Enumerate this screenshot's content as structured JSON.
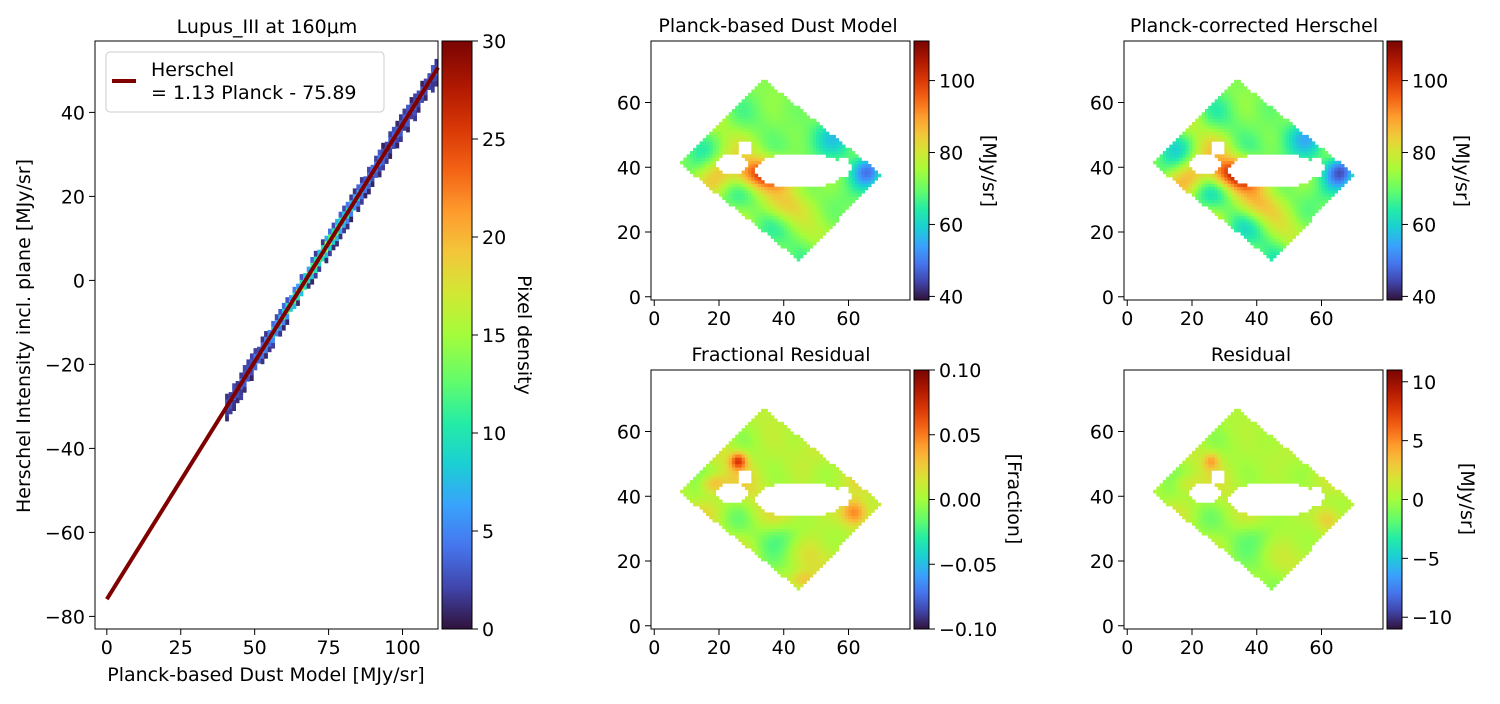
{
  "chart_data": [
    {
      "type": "heatmap",
      "subtype": "2d-density-scatter-with-fit",
      "title": "Lupus_III at 160μm",
      "xlabel": "Planck-based Dust Model [MJy/sr]",
      "ylabel": "Herschel Intensity incl. plane [MJy/sr]",
      "xlim": [
        -4,
        112
      ],
      "ylim": [
        -83,
        57
      ],
      "xticks": [
        "0",
        "25",
        "50",
        "75",
        "100"
      ],
      "yticks": [
        "−80",
        "−60",
        "−40",
        "−20",
        "0",
        "20",
        "40"
      ],
      "xtick_values": [
        0,
        25,
        50,
        75,
        100
      ],
      "ytick_values": [
        -80,
        -60,
        -40,
        -20,
        0,
        20,
        40
      ],
      "legend": {
        "line1": "Herschel",
        "line2": "= 1.13 Planck - 75.89",
        "placement": "upper-left"
      },
      "fit": {
        "slope": 1.13,
        "intercept": -75.89,
        "color": "#800000"
      },
      "density_x_range": [
        40,
        112
      ],
      "density_peak_x": 70,
      "colorbar": {
        "label": "Pixel density",
        "min": 0,
        "max": 30,
        "ticks": [
          "0",
          "5",
          "10",
          "15",
          "20",
          "25",
          "30"
        ],
        "tick_values": [
          0,
          5,
          10,
          15,
          20,
          25,
          30
        ],
        "colormap": "turbo"
      }
    },
    {
      "type": "heatmap",
      "title": "Planck-based Dust Model",
      "xlim": [
        -1,
        79
      ],
      "ylim": [
        -1,
        79
      ],
      "xticks": [
        "0",
        "20",
        "40",
        "60"
      ],
      "yticks": [
        "0",
        "20",
        "40",
        "60"
      ],
      "tick_values": [
        0,
        20,
        40,
        60
      ],
      "field": "model",
      "colorbar": {
        "label": "[MJy/sr]",
        "min": 39,
        "max": 111,
        "ticks": [
          "40",
          "60",
          "80",
          "100"
        ],
        "tick_values": [
          40,
          60,
          80,
          100
        ],
        "colormap": "turbo"
      }
    },
    {
      "type": "heatmap",
      "title": "Planck-corrected Herschel",
      "xlim": [
        -1,
        79
      ],
      "ylim": [
        -1,
        79
      ],
      "xticks": [
        "0",
        "20",
        "40",
        "60"
      ],
      "yticks": [
        "0",
        "20",
        "40",
        "60"
      ],
      "tick_values": [
        0,
        20,
        40,
        60
      ],
      "field": "corrected",
      "colorbar": {
        "label": "[MJy/sr]",
        "min": 39,
        "max": 111,
        "ticks": [
          "40",
          "60",
          "80",
          "100"
        ],
        "tick_values": [
          40,
          60,
          80,
          100
        ],
        "colormap": "turbo"
      }
    },
    {
      "type": "heatmap",
      "title": "Fractional Residual",
      "xlim": [
        -1,
        79
      ],
      "ylim": [
        -1,
        79
      ],
      "xticks": [
        "0",
        "20",
        "40",
        "60"
      ],
      "yticks": [
        "0",
        "20",
        "40",
        "60"
      ],
      "tick_values": [
        0,
        20,
        40,
        60
      ],
      "field": "fraction",
      "colorbar": {
        "label": "[Fraction]",
        "min": -0.1,
        "max": 0.1,
        "ticks": [
          "−0.10",
          "−0.05",
          "0.00",
          "0.05",
          "0.10"
        ],
        "tick_values": [
          -0.1,
          -0.05,
          0,
          0.05,
          0.1
        ],
        "colormap": "turbo"
      }
    },
    {
      "type": "heatmap",
      "title": "Residual",
      "xlim": [
        -1,
        79
      ],
      "ylim": [
        -1,
        79
      ],
      "xticks": [
        "0",
        "20",
        "40",
        "60"
      ],
      "yticks": [
        "0",
        "20",
        "40",
        "60"
      ],
      "tick_values": [
        0,
        20,
        40,
        60
      ],
      "field": "residual",
      "colorbar": {
        "label": "[MJy/sr]",
        "min": -11,
        "max": 11,
        "ticks": [
          "−10",
          "−5",
          "0",
          "5",
          "10"
        ],
        "tick_values": [
          -10,
          -5,
          0,
          5,
          10
        ],
        "colormap": "turbo"
      }
    }
  ]
}
